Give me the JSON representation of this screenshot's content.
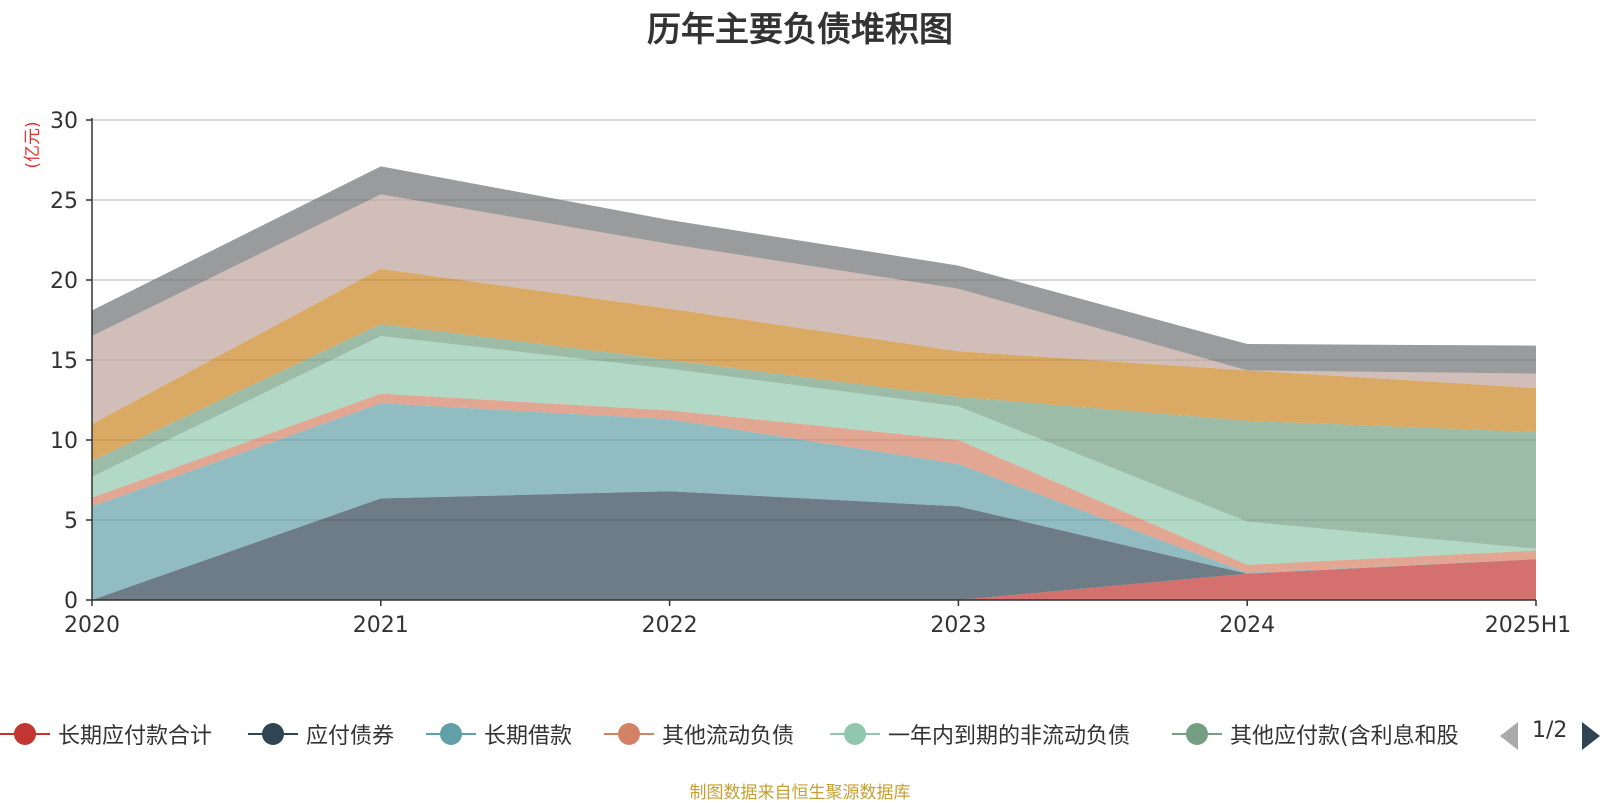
{
  "chart_data": {
    "type": "area",
    "title": "历年主要负债堆积图",
    "ylabel": "(亿元)",
    "categories": [
      "2020",
      "2021",
      "2022",
      "2023",
      "2024",
      "2025H1"
    ],
    "ylim": [
      0,
      30
    ],
    "yticks": [
      0,
      5,
      10,
      15,
      20,
      25,
      30
    ],
    "stacked": true,
    "grid": true,
    "legend_position": "bottom",
    "series": [
      {
        "name": "长期应付款合计",
        "color": "#c23531",
        "values": [
          0,
          0,
          0,
          0,
          1.65,
          2.55
        ]
      },
      {
        "name": "应付债券",
        "color": "#2f4554",
        "values": [
          0,
          6.35,
          6.8,
          5.85,
          0,
          0
        ]
      },
      {
        "name": "长期借款",
        "color": "#61a0a8",
        "values": [
          5.85,
          5.95,
          4.5,
          2.65,
          0.05,
          0
        ]
      },
      {
        "name": "其他流动负债",
        "color": "#d48265",
        "values": [
          0.55,
          0.6,
          0.55,
          1.5,
          0.5,
          0.55
        ]
      },
      {
        "name": "一年内到期的非流动负债",
        "color": "#91c7ae",
        "values": [
          1.3,
          3.6,
          2.6,
          2.1,
          2.7,
          0.1
        ]
      },
      {
        "name": "其他应付款(含利息和股",
        "color": "#749f83",
        "values": [
          1.0,
          0.75,
          0.55,
          0.6,
          6.3,
          7.3
        ]
      },
      {
        "name": "",
        "color": "#ca8622",
        "values": [
          2.3,
          3.45,
          3.2,
          2.85,
          3.15,
          2.75
        ]
      },
      {
        "name": "",
        "color": "#bda29a",
        "values": [
          5.5,
          4.65,
          4.05,
          3.9,
          0,
          0.9
        ]
      },
      {
        "name": "",
        "color": "#6e7074",
        "values": [
          1.6,
          1.75,
          1.5,
          1.45,
          1.65,
          1.75
        ]
      }
    ]
  },
  "legend": {
    "page": "1/2",
    "prev_icon": "triangle-left-icon",
    "next_icon": "triangle-right-icon"
  },
  "source_note": "制图数据来自恒生聚源数据库"
}
